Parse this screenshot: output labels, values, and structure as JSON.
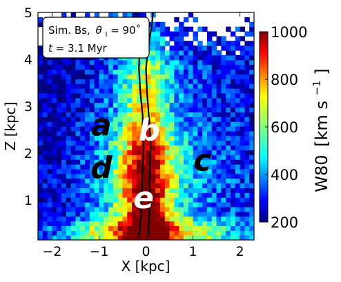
{
  "chart_data": {
    "type": "heatmap",
    "title": "",
    "xlabel": "X [kpc]",
    "ylabel": "Z [kpc]",
    "xlim": [
      -2.3,
      2.3
    ],
    "ylim": [
      0.15,
      5.0
    ],
    "x_ticks": [
      {
        "value": -2,
        "label": "−2"
      },
      {
        "value": -1,
        "label": "−1"
      },
      {
        "value": 0,
        "label": "0"
      },
      {
        "value": 1,
        "label": "1"
      },
      {
        "value": 2,
        "label": "2"
      }
    ],
    "y_ticks": [
      {
        "value": 1,
        "label": "1"
      },
      {
        "value": 2,
        "label": "2"
      },
      {
        "value": 3,
        "label": "3"
      },
      {
        "value": 4,
        "label": "4"
      },
      {
        "value": 5,
        "label": "5"
      }
    ],
    "colorbar": {
      "label": "W80 [km s⁻¹]",
      "label_main": "W80",
      "label_unit_open": "[km s",
      "label_unit_sup": "−1",
      "label_unit_close": "]",
      "min": 200,
      "max": 1000,
      "colormap": "jet",
      "ticks": [
        {
          "value": 200,
          "label": "200"
        },
        {
          "value": 400,
          "label": "400"
        },
        {
          "value": 600,
          "label": "600"
        },
        {
          "value": 800,
          "label": "800"
        },
        {
          "value": 1000,
          "label": "1000"
        }
      ]
    },
    "legend": {
      "placement": "top-left",
      "line1": "Sim.  Bs, θᴵ = 90°",
      "line1_prefix": "Sim.  Bs,",
      "line1_theta": "θ",
      "line1_sub": "I",
      "line1_rest": " = 90˚",
      "line2": "t = 3.1 Myr",
      "line2_italic": "t",
      "line2_rest": " = 3.1 Myr"
    },
    "region_labels": [
      {
        "text": "a",
        "x": -0.95,
        "z": 2.55,
        "color": "#000000"
      },
      {
        "text": "b",
        "x": 0.07,
        "z": 2.45,
        "color": "#ffffff"
      },
      {
        "text": "c",
        "x": 1.2,
        "z": 1.8,
        "color": "#000000"
      },
      {
        "text": "d",
        "x": -0.95,
        "z": 1.65,
        "color": "#000000"
      },
      {
        "text": "e",
        "x": -0.05,
        "z": 1.0,
        "color": "#ffffff"
      }
    ],
    "contours": [
      {
        "name": "",
        "points": [
          [
            -0.15,
            0.2
          ],
          [
            -0.1,
            0.8
          ],
          [
            -0.08,
            1.5
          ],
          [
            -0.05,
            2.2
          ],
          [
            -0.07,
            2.8
          ],
          [
            -0.12,
            3.3
          ],
          [
            -0.15,
            3.8
          ],
          [
            -0.13,
            4.3
          ],
          [
            -0.18,
            4.7
          ],
          [
            -0.22,
            5.0
          ]
        ]
      },
      {
        "name": "",
        "points": [
          [
            0.05,
            0.2
          ],
          [
            0.07,
            0.8
          ],
          [
            0.08,
            1.5
          ],
          [
            0.1,
            2.2
          ],
          [
            0.06,
            2.8
          ],
          [
            0.02,
            3.3
          ],
          [
            0.0,
            3.8
          ],
          [
            0.05,
            4.3
          ],
          [
            0.12,
            4.7
          ],
          [
            0.15,
            5.0
          ]
        ]
      }
    ]
  }
}
